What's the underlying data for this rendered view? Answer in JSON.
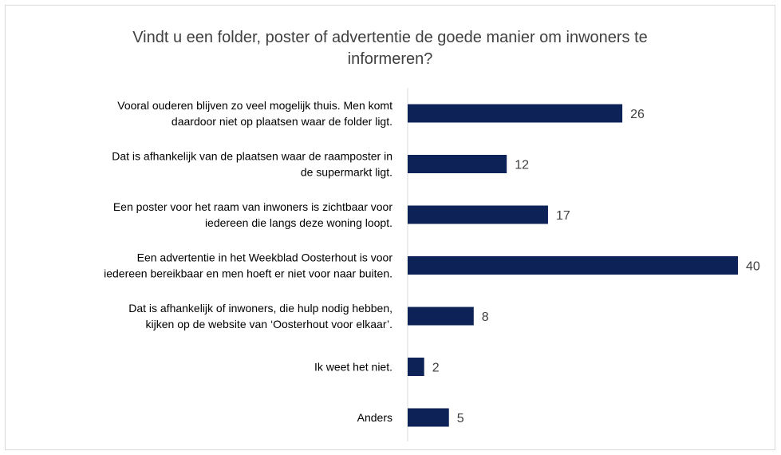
{
  "chart_data": {
    "type": "bar",
    "orientation": "horizontal",
    "title": "Vindt u een folder, poster of advertentie de goede manier om inwoners te informeren?",
    "title_lines": [
      "Vindt u een folder, poster of advertentie de goede manier om inwoners te",
      "informeren?"
    ],
    "categories": [
      [
        "Vooral ouderen blijven zo veel mogelijk thuis. Men komt",
        "daardoor niet op plaatsen waar de folder ligt."
      ],
      [
        "Dat is afhankelijk van de plaatsen waar de raamposter in",
        "de supermarkt ligt."
      ],
      [
        "Een poster voor het raam van inwoners is zichtbaar voor",
        "iedereen die langs deze woning loopt."
      ],
      [
        "Een advertentie in het Weekblad Oosterhout is voor",
        "iedereen bereikbaar en men hoeft er niet voor naar buiten."
      ],
      [
        "Dat is afhankelijk of inwoners, die hulp nodig hebben,",
        "kijken op de website van ‘Oosterhout voor elkaar’."
      ],
      [
        "Ik weet het niet."
      ],
      [
        "Anders"
      ]
    ],
    "values": [
      26,
      12,
      17,
      40,
      8,
      2,
      5
    ],
    "data_labels": true,
    "xlim": [
      0,
      40
    ],
    "grid": false,
    "legend": "none",
    "colors": {
      "bar": "#0d2257",
      "axis": "#d9d9d9",
      "label": "#404040",
      "frame": "#d9d9d9"
    }
  }
}
